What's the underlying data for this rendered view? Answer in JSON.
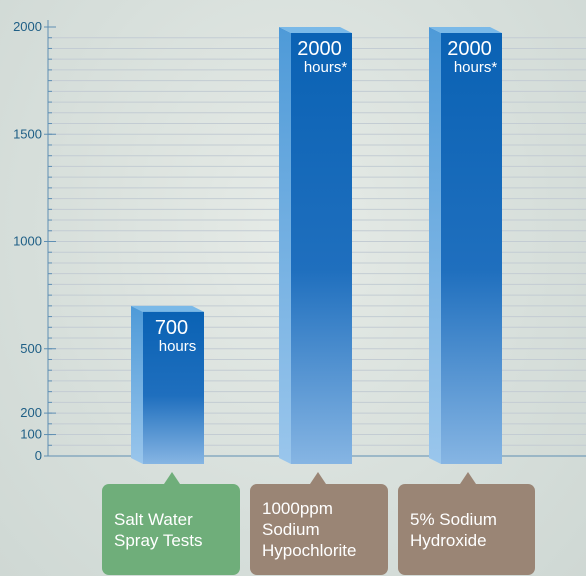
{
  "chart_data": {
    "type": "bar",
    "title": "",
    "xlabel": "",
    "ylabel": "",
    "ylim": [
      0,
      2000
    ],
    "yticks": [
      0,
      100,
      200,
      500,
      1000,
      1500,
      2000
    ],
    "grid": true,
    "categories": [
      "Salt Water\nSpray Tests",
      "1000ppm\nSodium\nHypochlorite",
      "5% Sodium\nHydroxide"
    ],
    "values": [
      700,
      2000,
      2000
    ],
    "value_labels": [
      "700",
      "2000",
      "2000"
    ],
    "unit_labels": [
      "hours",
      "hours*",
      "hours*"
    ],
    "colors": {
      "bar_top": "#0a62b4",
      "bar_bottom": "#7fb0e0",
      "bar_side": "#5aa3dc",
      "category_1": "#6fae7a",
      "category_2": "#9a8575",
      "category_3": "#9a8575",
      "axis": "#5f8fb3",
      "grid": "#c3ccd3"
    }
  }
}
